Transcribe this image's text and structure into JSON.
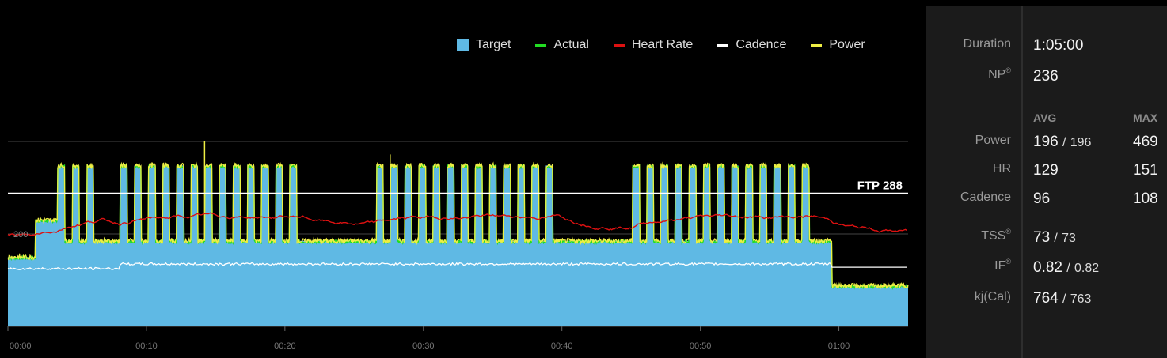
{
  "legend": {
    "target": "Target",
    "actual": "Actual",
    "heart_rate": "Heart Rate",
    "cadence": "Cadence",
    "power": "Power"
  },
  "colors": {
    "target": "#5fb9e4",
    "actual": "#22dd22",
    "heart_rate": "#dd1111",
    "cadence": "#ffffff",
    "power": "#eeee44",
    "background": "#000000",
    "panel": "#1b1b1b"
  },
  "chart_data": {
    "type": "area",
    "xlabel": "",
    "ylabel": "",
    "x_ticks": [
      "00:00",
      "00:10",
      "00:20",
      "00:30",
      "00:40",
      "00:50",
      "01:00"
    ],
    "x_tick_minutes": [
      0,
      10,
      20,
      30,
      40,
      50,
      60
    ],
    "xlim_minutes": [
      0,
      65
    ],
    "ylim": [
      0,
      400
    ],
    "ftp": {
      "label": "FTP 288",
      "value": 288
    },
    "y_label_200": "200",
    "gridlines": [
      200,
      400
    ],
    "baseline_power": 185,
    "interval_blocks": [
      {
        "start": 3.6,
        "count": 3,
        "on": 0.5,
        "off": 0.55,
        "level": 348
      },
      {
        "start": 8.1,
        "count": 13,
        "on": 0.5,
        "off": 0.52,
        "level": 348
      },
      {
        "start": 26.6,
        "count": 13,
        "on": 0.5,
        "off": 0.52,
        "level": 348
      },
      {
        "start": 45.1,
        "count": 13,
        "on": 0.5,
        "off": 0.52,
        "level": 348
      }
    ],
    "warmup": [
      {
        "from": 0,
        "to": 2.0,
        "value": 150
      },
      {
        "from": 2.0,
        "to": 3.6,
        "value": 230
      }
    ],
    "cooldown": {
      "from": 59.5,
      "to": 65,
      "value": 88
    },
    "cadence_level": 96,
    "heart_rate_range": [
      110,
      151
    ]
  },
  "stats": {
    "duration_label": "Duration",
    "duration_value": "1:05:00",
    "np_label": "NP",
    "np_value": "236",
    "avg_header": "AVG",
    "max_header": "MAX",
    "power_label": "Power",
    "power_avg": "196",
    "power_avg_sub": "196",
    "power_max": "469",
    "hr_label": "HR",
    "hr_avg": "129",
    "hr_max": "151",
    "cadence_label": "Cadence",
    "cadence_avg": "96",
    "cadence_max": "108",
    "tss_label": "TSS",
    "tss_value": "73",
    "tss_sub": "73",
    "if_label": "IF",
    "if_value": "0.82",
    "if_sub": "0.82",
    "kj_label": "kj(Cal)",
    "kj_value": "764",
    "kj_sub": "763",
    "registered_mark": "®",
    "slash": "/"
  }
}
